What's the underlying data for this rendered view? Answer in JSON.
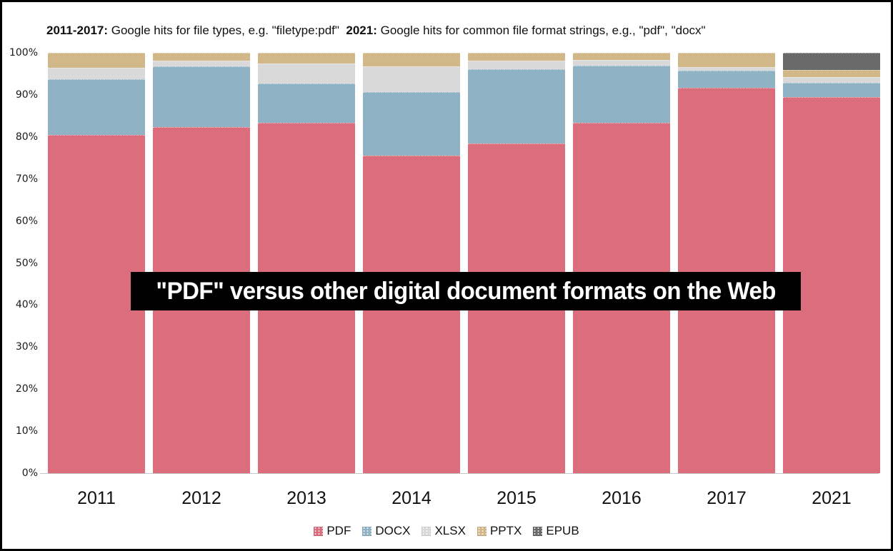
{
  "header": {
    "note_parts": [
      {
        "text": "2011-2017:",
        "bold": true
      },
      {
        "text": " Google hits for file types, e.g. \"filetype:pdf\"  ",
        "bold": false
      },
      {
        "text": "2021:",
        "bold": true
      },
      {
        "text": " Google hits for common file format strings, e.g., \"pdf\", \"docx\"",
        "bold": false
      }
    ]
  },
  "banner": {
    "text": "\"PDF\" versus other digital document formats on the Web",
    "background": "#000000",
    "color": "#ffffff"
  },
  "chart_data": {
    "type": "bar",
    "stacked": true,
    "title": "\"PDF\" versus other digital document formats on the Web",
    "xlabel": "",
    "ylabel": "",
    "ylim": [
      0,
      100
    ],
    "grid": false,
    "legend_position": "bottom",
    "categories": [
      "2011",
      "2012",
      "2013",
      "2014",
      "2015",
      "2016",
      "2017",
      "2021"
    ],
    "y_ticks": [
      "0%",
      "10%",
      "20%",
      "30%",
      "40%",
      "50%",
      "60%",
      "70%",
      "80%",
      "90%",
      "100%"
    ],
    "series": [
      {
        "name": "PDF",
        "color": "#dc6d7c",
        "textured": false,
        "values": [
          80.4,
          82.4,
          83.3,
          75.6,
          78.4,
          83.4,
          91.6,
          89.5
        ]
      },
      {
        "name": "DOCX",
        "color": "#8fb3c4",
        "textured": false,
        "values": [
          13.4,
          14.4,
          9.4,
          15.0,
          17.7,
          13.5,
          4.1,
          3.4
        ]
      },
      {
        "name": "XLSX",
        "color": "#d9d9d9",
        "textured": true,
        "values": [
          2.6,
          1.4,
          4.7,
          6.1,
          2.0,
          1.4,
          0.9,
          1.3
        ]
      },
      {
        "name": "PPTX",
        "color": "#d2b888",
        "textured": true,
        "values": [
          3.6,
          1.8,
          2.6,
          3.3,
          1.9,
          1.7,
          3.4,
          1.7
        ]
      },
      {
        "name": "EPUB",
        "color": "#696969",
        "textured": true,
        "values": [
          0,
          0,
          0,
          0,
          0,
          0,
          0,
          4.1
        ]
      }
    ]
  },
  "colors": {
    "axis_line": "#c6c6c6",
    "text": "#111111"
  }
}
